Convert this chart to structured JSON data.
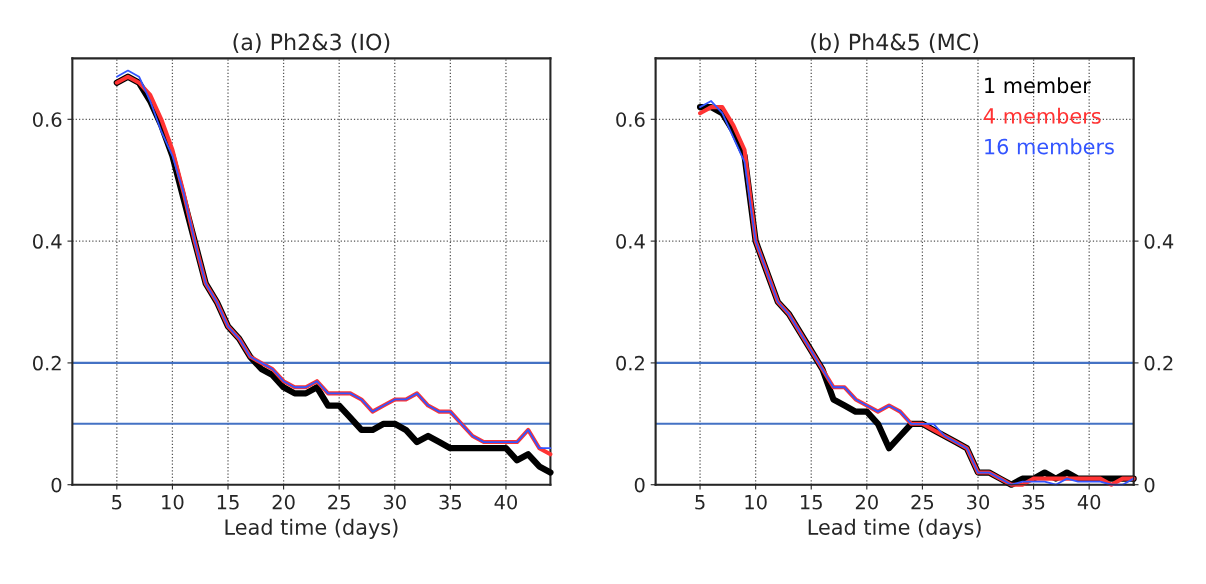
{
  "chart_data": [
    {
      "type": "line",
      "title": "(a) Ph2&3 (IO)",
      "xlabel": "Lead time (days)",
      "x": [
        5,
        6,
        7,
        8,
        9,
        10,
        11,
        12,
        13,
        14,
        15,
        16,
        17,
        18,
        19,
        20,
        21,
        22,
        23,
        24,
        25,
        26,
        27,
        28,
        29,
        30,
        31,
        32,
        33,
        34,
        35,
        36,
        37,
        38,
        39,
        40,
        41,
        42,
        43,
        44
      ],
      "series": [
        {
          "color": "#000000",
          "values": [
            0.66,
            0.67,
            0.66,
            0.63,
            0.59,
            0.54,
            0.47,
            0.4,
            0.33,
            0.3,
            0.26,
            0.24,
            0.21,
            0.19,
            0.18,
            0.16,
            0.15,
            0.15,
            0.16,
            0.13,
            0.13,
            0.11,
            0.09,
            0.09,
            0.1,
            0.1,
            0.09,
            0.07,
            0.08,
            0.07,
            0.06,
            0.06,
            0.06,
            0.06,
            0.06,
            0.06,
            0.04,
            0.05,
            0.03,
            0.02
          ]
        },
        {
          "color": "#ff3333",
          "values": [
            0.66,
            0.67,
            0.66,
            0.64,
            0.6,
            0.55,
            0.48,
            0.4,
            0.33,
            0.3,
            0.26,
            0.24,
            0.21,
            0.2,
            0.19,
            0.17,
            0.16,
            0.16,
            0.17,
            0.15,
            0.15,
            0.15,
            0.14,
            0.12,
            0.13,
            0.14,
            0.14,
            0.15,
            0.13,
            0.12,
            0.12,
            0.1,
            0.08,
            0.07,
            0.07,
            0.07,
            0.07,
            0.09,
            0.06,
            0.05
          ]
        },
        {
          "color": "#3355ff",
          "values": [
            0.67,
            0.68,
            0.67,
            0.63,
            0.58,
            0.54,
            0.48,
            0.4,
            0.33,
            0.3,
            0.26,
            0.24,
            0.21,
            0.2,
            0.19,
            0.17,
            0.16,
            0.16,
            0.17,
            0.15,
            0.15,
            0.15,
            0.14,
            0.12,
            0.13,
            0.14,
            0.14,
            0.15,
            0.13,
            0.12,
            0.12,
            0.1,
            0.08,
            0.07,
            0.07,
            0.07,
            0.07,
            0.09,
            0.06,
            0.06
          ]
        }
      ],
      "xlim": [
        1,
        44
      ],
      "xticks": [
        5,
        10,
        15,
        20,
        25,
        30,
        35,
        40
      ],
      "ylim": [
        0,
        0.7
      ],
      "yticks": [
        0,
        0.2,
        0.4,
        0.6
      ],
      "grid": true,
      "ref_lines": [
        {
          "axis": "y",
          "value": 0.2,
          "color": "#4472c4"
        },
        {
          "axis": "y",
          "value": 0.1,
          "color": "#4472c4"
        }
      ]
    },
    {
      "type": "line",
      "title": "(b) Ph4&5 (MC)",
      "xlabel": "Lead time (days)",
      "x": [
        5,
        6,
        7,
        8,
        9,
        10,
        11,
        12,
        13,
        14,
        15,
        16,
        17,
        18,
        19,
        20,
        21,
        22,
        23,
        24,
        25,
        26,
        27,
        28,
        29,
        30,
        31,
        32,
        33,
        34,
        35,
        36,
        37,
        38,
        39,
        40,
        41,
        42,
        43,
        44
      ],
      "series": [
        {
          "name": "1 member",
          "color": "#000000",
          "values": [
            0.62,
            0.62,
            0.61,
            0.58,
            0.54,
            0.4,
            0.35,
            0.3,
            0.28,
            0.25,
            0.22,
            0.19,
            0.14,
            0.13,
            0.12,
            0.12,
            0.1,
            0.06,
            0.08,
            0.1,
            0.1,
            0.09,
            0.08,
            0.07,
            0.06,
            0.02,
            0.02,
            0.01,
            0.0,
            0.01,
            0.01,
            0.02,
            0.01,
            0.02,
            0.01,
            0.01,
            0.01,
            0.01,
            0.01,
            0.01
          ]
        },
        {
          "name": "4 members",
          "color": "#ff3333",
          "values": [
            0.61,
            0.62,
            0.62,
            0.59,
            0.55,
            0.4,
            0.35,
            0.3,
            0.28,
            0.25,
            0.22,
            0.19,
            0.16,
            0.16,
            0.14,
            0.13,
            0.12,
            0.13,
            0.12,
            0.1,
            0.1,
            0.09,
            0.08,
            0.07,
            0.06,
            0.02,
            0.02,
            0.01,
            0.0,
            0.0,
            0.01,
            0.01,
            0.01,
            0.01,
            0.01,
            0.01,
            0.01,
            0.0,
            0.01,
            0.01
          ]
        },
        {
          "name": "16 members",
          "color": "#3355ff",
          "values": [
            0.62,
            0.63,
            0.61,
            0.57,
            0.53,
            0.4,
            0.35,
            0.3,
            0.28,
            0.25,
            0.22,
            0.19,
            0.16,
            0.16,
            0.14,
            0.13,
            0.12,
            0.13,
            0.12,
            0.1,
            0.1,
            0.1,
            0.08,
            0.07,
            0.06,
            0.02,
            0.02,
            0.01,
            0.0,
            0.005,
            0.005,
            0.005,
            0.0,
            0.01,
            0.005,
            0.005,
            0.005,
            0.0,
            0.0,
            0.01
          ]
        }
      ],
      "xlim": [
        1,
        44
      ],
      "xticks": [
        5,
        10,
        15,
        20,
        25,
        30,
        35,
        40
      ],
      "ylim": [
        0,
        0.7
      ],
      "yticks": [
        0,
        0.2,
        0.4,
        0.6
      ],
      "y2lim": [
        0,
        0.7
      ],
      "y2ticks": [
        0,
        0.2,
        0.4
      ],
      "grid": true,
      "legend": "top right",
      "ref_lines": [
        {
          "axis": "y",
          "value": 0.2,
          "color": "#4472c4"
        },
        {
          "axis": "y",
          "value": 0.1,
          "color": "#4472c4"
        }
      ]
    }
  ]
}
